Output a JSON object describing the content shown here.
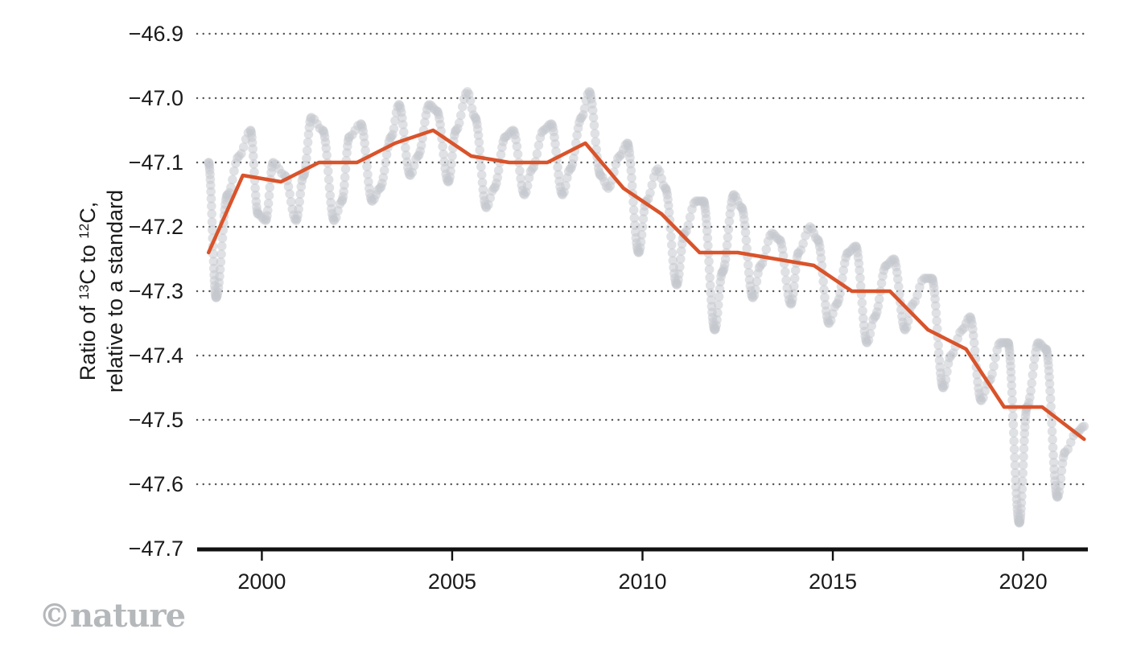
{
  "chart_data": {
    "type": "line",
    "title": "",
    "xlabel": "",
    "ylabel_lines": [
      [
        "Ratio of ",
        "13",
        "C to ",
        "12",
        "C,"
      ],
      [
        "relative to a standard"
      ]
    ],
    "xlim": [
      1998.3,
      2021.7
    ],
    "ylim": [
      -47.7,
      -46.9
    ],
    "x_ticks": [
      2000,
      2005,
      2010,
      2015,
      2020
    ],
    "x_tick_labels": [
      "2000",
      "2005",
      "2010",
      "2015",
      "2020"
    ],
    "y_ticks": [
      -46.9,
      -47.0,
      -47.1,
      -47.2,
      -47.3,
      -47.4,
      -47.5,
      -47.6,
      -47.7
    ],
    "y_tick_labels": [
      "−46.9",
      "−47.0",
      "−47.1",
      "−47.2",
      "−47.3",
      "−47.4",
      "−47.5",
      "−47.6",
      "−47.7"
    ],
    "grid": "horizontal-dotted",
    "colors": {
      "annual": "#d9532b",
      "monthly": "#c4c9ce",
      "axis": "#111111",
      "grid": "#555555"
    },
    "series": [
      {
        "style": "line",
        "x": [
          1998.6,
          1999.5,
          2000.5,
          2001.5,
          2002.5,
          2003.5,
          2004.5,
          2005.5,
          2006.5,
          2007.5,
          2008.5,
          2009.5,
          2010.5,
          2011.5,
          2012.5,
          2013.5,
          2014.5,
          2015.5,
          2016.5,
          2017.5,
          2018.5,
          2019.5,
          2020.5,
          2021.6
        ],
        "y": [
          -47.24,
          -47.12,
          -47.13,
          -47.1,
          -47.1,
          -47.07,
          -47.05,
          -47.09,
          -47.1,
          -47.1,
          -47.07,
          -47.14,
          -47.18,
          -47.24,
          -47.24,
          -47.25,
          -47.26,
          -47.3,
          -47.3,
          -47.36,
          -47.39,
          -47.48,
          -47.48,
          -47.53
        ]
      },
      {
        "style": "points",
        "x": [
          1998.6,
          1998.8,
          1999.1,
          1999.4,
          1999.7,
          1999.9,
          2000.1,
          2000.3,
          2000.6,
          2000.9,
          2001.1,
          2001.3,
          2001.6,
          2001.9,
          2002.1,
          2002.3,
          2002.6,
          2002.9,
          2003.1,
          2003.4,
          2003.6,
          2003.9,
          2004.1,
          2004.4,
          2004.6,
          2004.9,
          2005.1,
          2005.4,
          2005.6,
          2005.9,
          2006.1,
          2006.4,
          2006.6,
          2006.9,
          2007.1,
          2007.4,
          2007.6,
          2007.9,
          2008.1,
          2008.4,
          2008.6,
          2008.9,
          2009.1,
          2009.4,
          2009.6,
          2009.9,
          2010.1,
          2010.4,
          2010.6,
          2010.9,
          2011.1,
          2011.4,
          2011.6,
          2011.9,
          2012.1,
          2012.4,
          2012.6,
          2012.9,
          2013.1,
          2013.4,
          2013.6,
          2013.9,
          2014.1,
          2014.4,
          2014.6,
          2014.9,
          2015.1,
          2015.4,
          2015.6,
          2015.9,
          2016.1,
          2016.4,
          2016.6,
          2016.9,
          2017.1,
          2017.4,
          2017.6,
          2017.9,
          2018.1,
          2018.4,
          2018.6,
          2018.9,
          2019.1,
          2019.4,
          2019.6,
          2019.9,
          2020.1,
          2020.4,
          2020.6,
          2020.9,
          2021.1,
          2021.4,
          2021.6
        ],
        "y": [
          -47.1,
          -47.31,
          -47.15,
          -47.09,
          -47.05,
          -47.18,
          -47.19,
          -47.1,
          -47.12,
          -47.19,
          -47.12,
          -47.03,
          -47.05,
          -47.19,
          -47.16,
          -47.06,
          -47.04,
          -47.16,
          -47.14,
          -47.06,
          -47.01,
          -47.12,
          -47.09,
          -47.01,
          -47.02,
          -47.13,
          -47.05,
          -46.99,
          -47.03,
          -47.17,
          -47.14,
          -47.06,
          -47.05,
          -47.15,
          -47.11,
          -47.05,
          -47.04,
          -47.15,
          -47.11,
          -47.03,
          -46.99,
          -47.12,
          -47.14,
          -47.09,
          -47.07,
          -47.24,
          -47.16,
          -47.11,
          -47.14,
          -47.29,
          -47.21,
          -47.16,
          -47.16,
          -47.36,
          -47.27,
          -47.15,
          -47.17,
          -47.31,
          -47.26,
          -47.21,
          -47.22,
          -47.32,
          -47.24,
          -47.2,
          -47.22,
          -47.35,
          -47.32,
          -47.24,
          -47.23,
          -47.38,
          -47.34,
          -47.26,
          -47.25,
          -47.36,
          -47.32,
          -47.28,
          -47.28,
          -47.45,
          -47.4,
          -47.36,
          -47.34,
          -47.47,
          -47.44,
          -47.38,
          -47.38,
          -47.66,
          -47.48,
          -47.38,
          -47.39,
          -47.62,
          -47.55,
          -47.52,
          -47.51
        ]
      }
    ],
    "source": "©nature"
  }
}
